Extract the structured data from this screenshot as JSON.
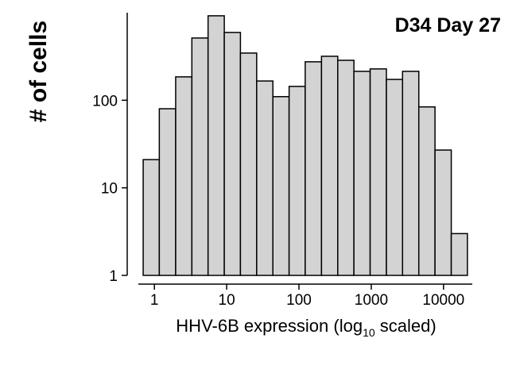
{
  "chart_data": {
    "type": "histogram",
    "title": "D34 Day 27",
    "y_label": "# of cells",
    "x_label": {
      "before": "HHV-6B expression (log",
      "sub": "10",
      "after": " scaled)"
    },
    "bins": [
      0.7,
      1.17,
      1.97,
      3.3,
      5.53,
      9.27,
      15.5,
      26.0,
      43.6,
      73.1,
      122,
      205,
      344,
      576,
      966,
      1620,
      2710,
      4550,
      7620,
      12800,
      21400
    ],
    "values": [
      21,
      80,
      185,
      514,
      922,
      595,
      346,
      166,
      110,
      144,
      275,
      318,
      286,
      214,
      228,
      173,
      214,
      84,
      27,
      3
    ],
    "color": "#d3d3d3",
    "xlim": [
      0.6,
      25000
    ],
    "xticks": [
      1,
      10,
      100,
      1000,
      10000
    ],
    "xscale": "log",
    "ylim": [
      1,
      1000
    ],
    "yticks": [
      1,
      10,
      100
    ],
    "yscale": "log"
  }
}
